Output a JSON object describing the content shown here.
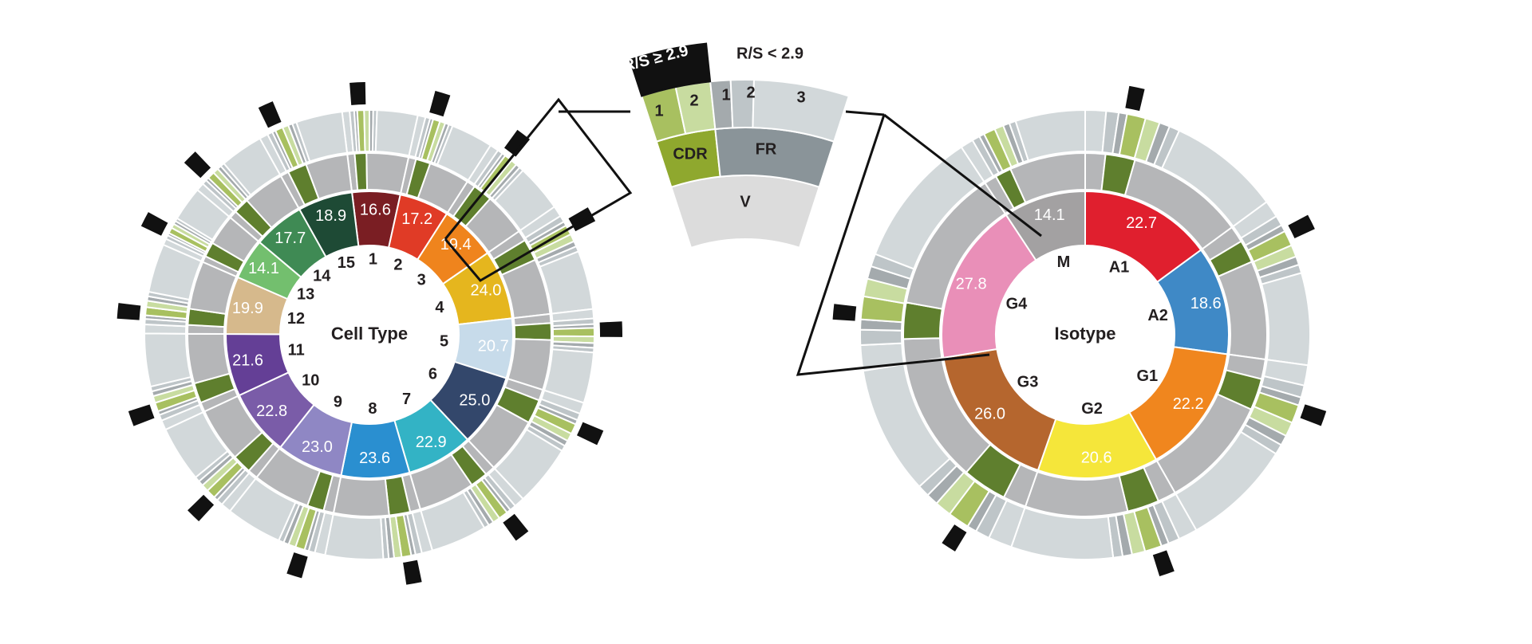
{
  "colors": {
    "cdr1": "#a8c060",
    "cdr2": "#c8dca0",
    "cdr": "#8fa82e",
    "cdr_dark": "#5f7f2e",
    "fr1": "#a4aaad",
    "fr2": "#bec5c8",
    "fr3": "#d2d8da",
    "fr": "#8a9499",
    "v": "#dcdcdc",
    "mid_grey": "#b5b6b8",
    "rs_high": "#111111",
    "region_pos_text": "#231f20"
  },
  "chart_data": [
    {
      "type": "sunburst",
      "center_label": "Cell Type",
      "inner_ring_label": "mean value",
      "categories": [
        "1",
        "2",
        "3",
        "4",
        "5",
        "6",
        "7",
        "8",
        "9",
        "10",
        "11",
        "12",
        "13",
        "14",
        "15"
      ],
      "values": [
        16.6,
        17.2,
        19.4,
        24.0,
        20.7,
        25.0,
        22.9,
        23.6,
        23.0,
        22.8,
        21.6,
        19.9,
        14.1,
        17.7,
        18.9
      ],
      "colors": [
        "#7a1e23",
        "#e03b26",
        "#ef841d",
        "#e5b61e",
        "#c7dbea",
        "#33476b",
        "#33b3c5",
        "#2a8fd0",
        "#8f87c4",
        "#7a5ca8",
        "#643f96",
        "#d6b98c",
        "#73bf6e",
        "#3f8a54",
        "#1e4a35"
      ],
      "value_labels": [
        "16.6",
        "17.2",
        "19.4",
        "24.0",
        "20.7",
        "25.0",
        "22.9",
        "23.6",
        "23.0",
        "22.8",
        "21.6",
        "19.9",
        "14.1",
        "17.7",
        "18.9"
      ],
      "cdr_fraction": [
        0.35,
        0.42,
        0.5,
        0.45,
        0.4,
        0.48,
        0.38,
        0.44,
        0.36,
        0.42,
        0.46,
        0.4,
        0.52,
        0.44,
        0.5
      ],
      "rs_high": [
        true,
        true,
        true,
        true,
        true,
        true,
        true,
        true,
        true,
        true,
        true,
        true,
        true,
        true,
        true
      ]
    },
    {
      "type": "sunburst",
      "center_label": "Isotype",
      "inner_ring_label": "mean value",
      "categories": [
        "A1",
        "A2",
        "G1",
        "G2",
        "G3",
        "G4",
        "M"
      ],
      "values": [
        22.7,
        18.6,
        22.2,
        20.6,
        26.0,
        27.8,
        14.1
      ],
      "colors": [
        "#e01f2e",
        "#3f89c6",
        "#f0861e",
        "#f5e63a",
        "#b5662e",
        "#e98fb8",
        "#a3a1a2"
      ],
      "value_labels": [
        "22.7",
        "18.6",
        "22.2",
        "20.6",
        "26.0",
        "27.8",
        "14.1"
      ],
      "cdr_fraction": [
        0.32,
        0.3,
        0.35,
        0.38,
        0.42,
        0.32,
        0.28
      ],
      "rs_high": [
        true,
        true,
        true,
        true,
        true,
        true,
        false
      ]
    }
  ],
  "legend": {
    "rs_high_label": "R/S ≥ 2.9",
    "rs_low_label": "R/S < 2.9",
    "cdr1_label": "1",
    "cdr2_label": "2",
    "fr1_label": "1",
    "fr2_label": "2",
    "fr3_label": "3",
    "cdr_label": "CDR",
    "fr_label": "FR",
    "v_label": "V"
  }
}
